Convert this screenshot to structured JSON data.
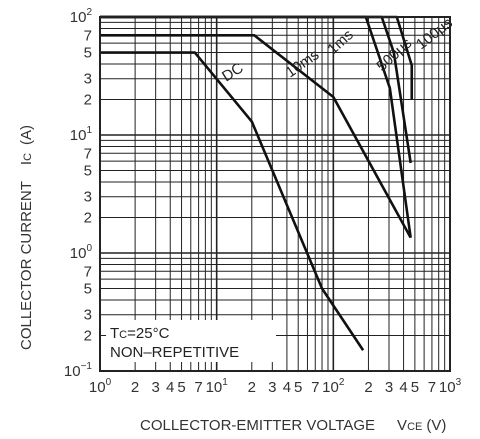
{
  "chart_data": {
    "type": "line",
    "xlabel": "COLLECTOR-EMITTER VOLTAGE",
    "xlabel_symbol": "VCE",
    "xlabel_unit": "(V)",
    "ylabel": "COLLECTOR CURRENT",
    "ylabel_symbol": "IC",
    "ylabel_unit": "(A)",
    "x_scale": "log",
    "y_scale": "log",
    "xlim": [
      1,
      1000
    ],
    "ylim": [
      0.1,
      100
    ],
    "grid": true,
    "x_ticks": [
      {
        "v": 1,
        "base": "10",
        "exp": "0"
      },
      {
        "v": 2,
        "label": "2"
      },
      {
        "v": 3,
        "label": "3"
      },
      {
        "v": 4,
        "label": "4"
      },
      {
        "v": 5,
        "label": "5"
      },
      {
        "v": 7,
        "label": "7"
      },
      {
        "v": 10,
        "base": "10",
        "exp": "1"
      },
      {
        "v": 20,
        "label": "2"
      },
      {
        "v": 30,
        "label": "3"
      },
      {
        "v": 40,
        "label": "4"
      },
      {
        "v": 50,
        "label": "5"
      },
      {
        "v": 70,
        "label": "7"
      },
      {
        "v": 100,
        "base": "10",
        "exp": "2"
      },
      {
        "v": 200,
        "label": "2"
      },
      {
        "v": 300,
        "label": "3"
      },
      {
        "v": 400,
        "label": "4"
      },
      {
        "v": 500,
        "label": "5"
      },
      {
        "v": 700,
        "label": "7"
      },
      {
        "v": 1000,
        "base": "10",
        "exp": "3"
      }
    ],
    "y_ticks": [
      {
        "v": 100,
        "base": "10",
        "exp": "2"
      },
      {
        "v": 70,
        "label": "7"
      },
      {
        "v": 50,
        "label": "5"
      },
      {
        "v": 30,
        "label": "3"
      },
      {
        "v": 20,
        "label": "2"
      },
      {
        "v": 10,
        "base": "10",
        "exp": "1"
      },
      {
        "v": 7,
        "label": "7"
      },
      {
        "v": 5,
        "label": "5"
      },
      {
        "v": 3,
        "label": "3"
      },
      {
        "v": 2,
        "label": "2"
      },
      {
        "v": 1,
        "base": "10",
        "exp": "0"
      },
      {
        "v": 0.7,
        "label": "7"
      },
      {
        "v": 0.5,
        "label": "5"
      },
      {
        "v": 0.3,
        "label": "3"
      },
      {
        "v": 0.2,
        "label": "2"
      },
      {
        "v": 0.1,
        "base": "10",
        "exp": "−1"
      }
    ],
    "series": [
      {
        "name": "100μs",
        "x": [
          1,
          350,
          470,
          470
        ],
        "y": [
          100,
          100,
          39,
          20
        ]
      },
      {
        "name": "500μs",
        "x": [
          1,
          260,
          330,
          460,
          460
        ],
        "y": [
          100,
          100,
          50,
          5.8,
          5.8
        ]
      },
      {
        "name": "1ms",
        "x": [
          1,
          190,
          305,
          460,
          460
        ],
        "y": [
          100,
          100,
          25,
          1.35,
          1.35
        ]
      },
      {
        "name": "10ms",
        "x": [
          1,
          21,
          100,
          460
        ],
        "y": [
          70,
          70,
          21,
          1.35
        ]
      },
      {
        "name": "DC",
        "x": [
          1,
          6.5,
          20,
          80,
          180
        ],
        "y": [
          50,
          50,
          13,
          0.5,
          0.15
        ]
      }
    ],
    "annotations": [
      "TC=25°C",
      "NON–REPETITIVE"
    ]
  }
}
